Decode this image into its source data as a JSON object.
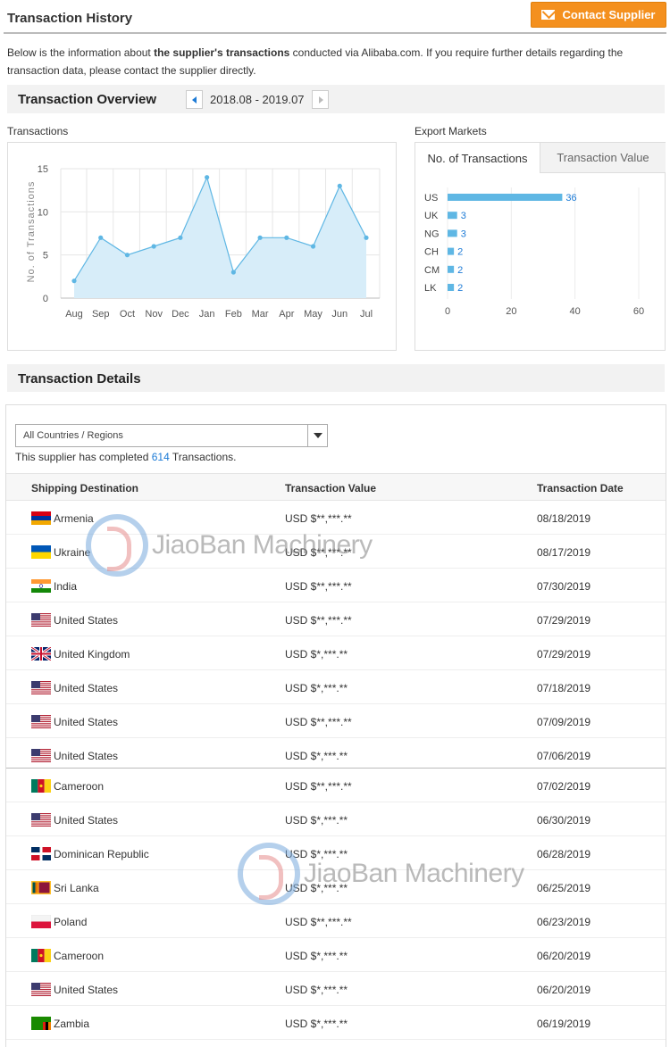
{
  "header": {
    "title": "Transaction History",
    "contact_button": "Contact Supplier"
  },
  "intro": {
    "part1": "Below is the information about ",
    "bold": "the supplier's transactions",
    "part2": " conducted via Alibaba.com. If you require further details regarding the transaction data, please contact the supplier directly."
  },
  "overview": {
    "title": "Transaction Overview",
    "period": "2018.08 - 2019.07",
    "transactions_label": "Transactions",
    "export_label": "Export Markets",
    "tabs": [
      "No. of Transactions",
      "Transaction Value"
    ]
  },
  "chart_data": [
    {
      "type": "area",
      "title": "",
      "xlabel": "",
      "ylabel": "No. of Transactions",
      "categories": [
        "Aug",
        "Sep",
        "Oct",
        "Nov",
        "Dec",
        "Jan",
        "Feb",
        "Mar",
        "Apr",
        "May",
        "Jun",
        "Jul"
      ],
      "values": [
        2,
        7,
        5,
        6,
        7,
        14,
        3,
        7,
        7,
        6,
        13,
        7
      ],
      "ylim": [
        0,
        15
      ],
      "yticks": [
        "0",
        "5",
        "10",
        "15"
      ],
      "grid": true,
      "color": "#5fb7e4"
    },
    {
      "type": "bar",
      "orientation": "horizontal",
      "title": "",
      "categories": [
        "US",
        "UK",
        "NG",
        "CH",
        "CM",
        "LK"
      ],
      "values": [
        36,
        3,
        3,
        2,
        2,
        2
      ],
      "xlim": [
        0,
        60
      ],
      "xticks": [
        "0",
        "20",
        "40",
        "60"
      ],
      "grid": true,
      "color": "#5fb7e4"
    }
  ],
  "details": {
    "title": "Transaction Details",
    "select_value": "All Countries / Regions",
    "completed_prefix": "This supplier has completed ",
    "completed_count": "614",
    "completed_suffix": " Transactions.",
    "columns": [
      "Shipping Destination",
      "Transaction Value",
      "Transaction Date"
    ],
    "rows": [
      {
        "flag": "armenia",
        "country": "Armenia",
        "value": "USD $**,***.**",
        "date": "08/18/2019"
      },
      {
        "flag": "ukraine",
        "country": "Ukraine",
        "value": "USD $**,***.**",
        "date": "08/17/2019"
      },
      {
        "flag": "india",
        "country": "India",
        "value": "USD $**,***.**",
        "date": "07/30/2019"
      },
      {
        "flag": "us",
        "country": "United States",
        "value": "USD $**,***.**",
        "date": "07/29/2019"
      },
      {
        "flag": "uk",
        "country": "United Kingdom",
        "value": "USD $*,***.**",
        "date": "07/29/2019"
      },
      {
        "flag": "us",
        "country": "United States",
        "value": "USD $*,***.**",
        "date": "07/18/2019"
      },
      {
        "flag": "us",
        "country": "United States",
        "value": "USD $**,***.**",
        "date": "07/09/2019"
      },
      {
        "flag": "us",
        "country": "United States",
        "value": "USD $*,***.**",
        "date": "07/06/2019"
      },
      {
        "flag": "cameroon",
        "country": "Cameroon",
        "value": "USD $**,***.**",
        "date": "07/02/2019"
      },
      {
        "flag": "us",
        "country": "United States",
        "value": "USD $*,***.**",
        "date": "06/30/2019"
      },
      {
        "flag": "dominican",
        "country": "Dominican Republic",
        "value": "USD $*,***.**",
        "date": "06/28/2019"
      },
      {
        "flag": "srilanka",
        "country": "Sri Lanka",
        "value": "USD $*,***.**",
        "date": "06/25/2019"
      },
      {
        "flag": "poland",
        "country": "Poland",
        "value": "USD $**,***.**",
        "date": "06/23/2019"
      },
      {
        "flag": "cameroon",
        "country": "Cameroon",
        "value": "USD $*,***.**",
        "date": "06/20/2019"
      },
      {
        "flag": "us",
        "country": "United States",
        "value": "USD $*,***.**",
        "date": "06/20/2019"
      },
      {
        "flag": "zambia",
        "country": "Zambia",
        "value": "USD $*,***.**",
        "date": "06/19/2019"
      }
    ]
  },
  "watermark": "JiaoBan Machinery",
  "colors": {
    "accent": "#f4901e",
    "link": "#1d7bd6",
    "chart": "#5fb7e4"
  }
}
